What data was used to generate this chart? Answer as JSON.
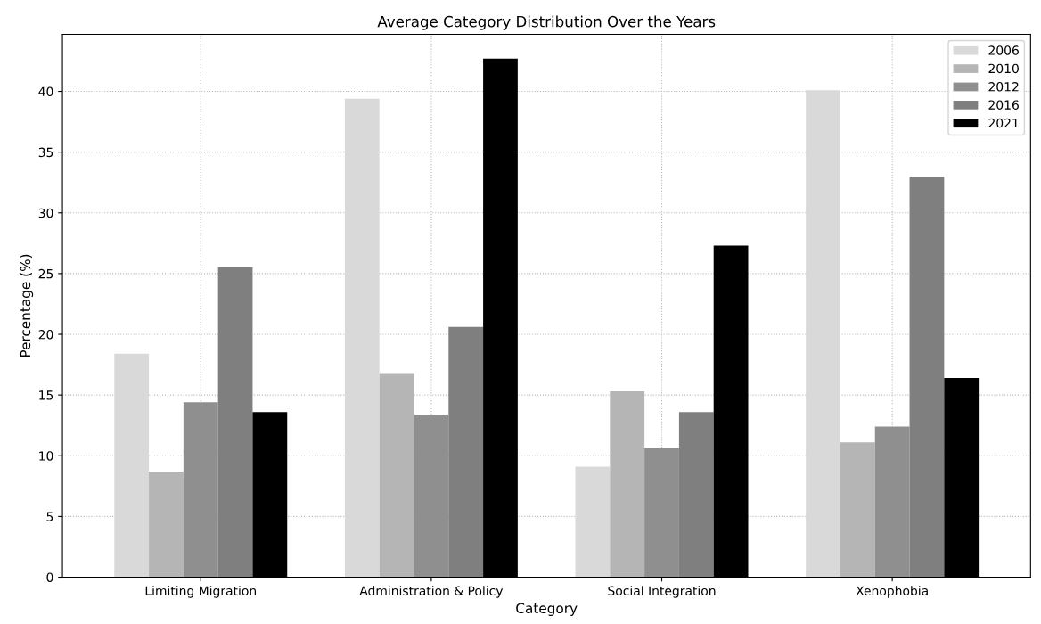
{
  "chart_data": {
    "type": "bar",
    "title": "Average Category Distribution Over the Years",
    "xlabel": "Category",
    "ylabel": "Percentage (%)",
    "categories": [
      "Limiting Migration",
      "Administration & Policy",
      "Social Integration",
      "Xenophobia"
    ],
    "series": [
      {
        "name": "2006",
        "color": "#d9d9d9",
        "values": [
          18.4,
          39.4,
          9.1,
          40.1
        ]
      },
      {
        "name": "2010",
        "color": "#b5b5b5",
        "values": [
          8.7,
          16.8,
          15.3,
          11.1
        ]
      },
      {
        "name": "2012",
        "color": "#8f8f8f",
        "values": [
          14.4,
          13.4,
          10.6,
          12.4
        ]
      },
      {
        "name": "2016",
        "color": "#7f7f7f",
        "values": [
          25.5,
          20.6,
          13.6,
          33.0
        ]
      },
      {
        "name": "2021",
        "color": "#000000",
        "values": [
          13.6,
          42.7,
          27.3,
          16.4
        ]
      }
    ],
    "ylim": [
      0,
      44.7
    ],
    "yticks": [
      0,
      5,
      10,
      15,
      20,
      25,
      30,
      35,
      40
    ],
    "grid": true,
    "legend": "top right"
  }
}
